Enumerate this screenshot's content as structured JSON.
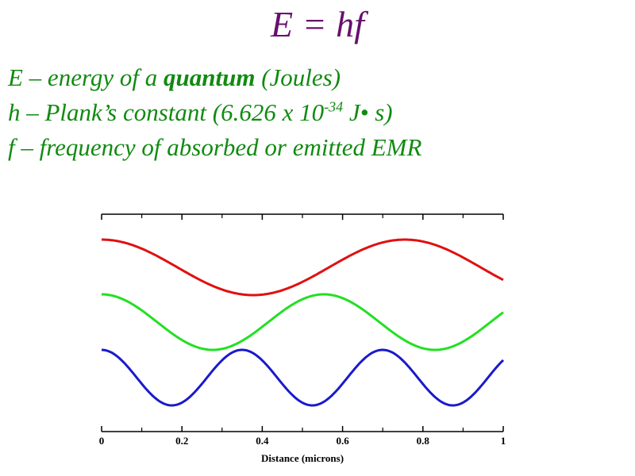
{
  "header": {
    "title": "E = hf"
  },
  "lines": [
    {
      "before": "E – energy of a ",
      "bold": "quantum",
      "after": " (Joules)"
    },
    {
      "before": "h – Plank’s constant (6.626 x 10",
      "sup": "-34",
      "after": " J• s)"
    },
    {
      "before": "f – frequency of absorbed or emitted EMR"
    }
  ],
  "chart_data": {
    "type": "wave",
    "xlabel": "Distance (microns)",
    "xlim": [
      0,
      1
    ],
    "xticks": [
      0,
      0.2,
      0.4,
      0.6,
      0.8,
      1
    ],
    "colors": [
      "#e01010",
      "#22e022",
      "#1a1acc"
    ]
  }
}
